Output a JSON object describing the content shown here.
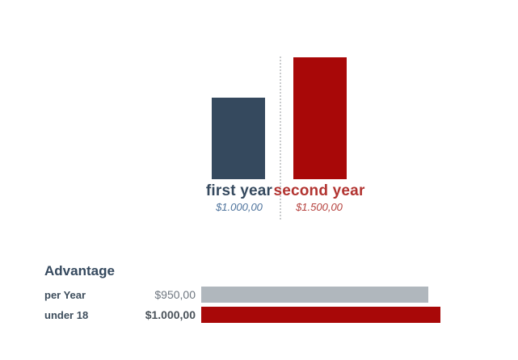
{
  "colors": {
    "navy_bar": "#35495e",
    "red_bar": "#a80808",
    "gray_bar": "#b0b7bd",
    "navy_text": "#35495e",
    "red_text": "#b23431",
    "value_blue_text": "#4e739c",
    "value_red_text": "#b5413d",
    "divider_gray": "#c9cbcd"
  },
  "comparison": {
    "items": [
      {
        "label": "first year",
        "value": "$1.000,00"
      },
      {
        "label": "second year",
        "value": "$1.500,00"
      }
    ]
  },
  "advantage": {
    "heading": "Advantage",
    "rows": [
      {
        "label": "per Year",
        "value": "$950,00"
      },
      {
        "label": "under 18",
        "value": "$1.000,00"
      }
    ]
  },
  "chart_data": [
    {
      "type": "bar",
      "orientation": "vertical",
      "title": "",
      "categories": [
        "first year",
        "second year"
      ],
      "values": [
        1000,
        1500
      ],
      "value_labels": [
        "$1.000,00",
        "$1.500,00"
      ],
      "ylim": [
        0,
        1500
      ],
      "colors": [
        "#35495e",
        "#a80808"
      ],
      "grid": false,
      "axes_shown": false,
      "separator": "dotted-vertical-line"
    },
    {
      "type": "bar",
      "orientation": "horizontal",
      "title": "Advantage",
      "categories": [
        "per Year",
        "under 18"
      ],
      "values": [
        950,
        1000
      ],
      "value_labels": [
        "$950,00",
        "$1.000,00"
      ],
      "xlim": [
        0,
        1000
      ],
      "colors": [
        "#b0b7bd",
        "#a80808"
      ],
      "grid": false,
      "axes_shown": false
    }
  ]
}
